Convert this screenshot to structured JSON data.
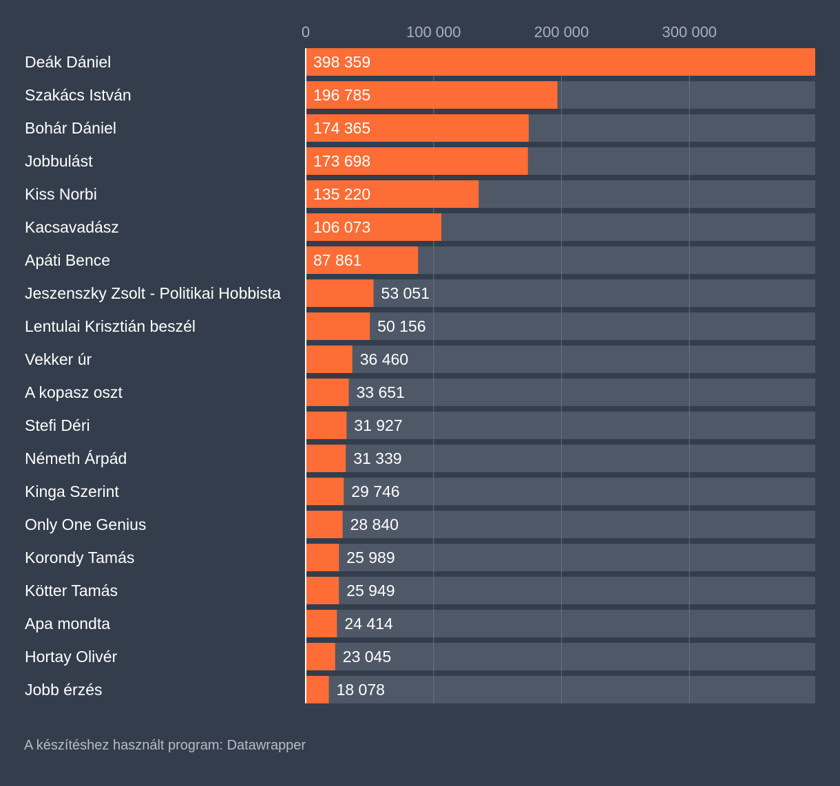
{
  "chart_data": {
    "type": "bar",
    "orientation": "horizontal",
    "categories": [
      "Deák Dániel",
      "Szakács István",
      "Bohár Dániel",
      "Jobbulást",
      "Kiss Norbi",
      "Kacsavadász",
      "Apáti Bence",
      "Jeszenszky Zsolt - Politikai Hobbista",
      "Lentulai Krisztián beszél",
      "Vekker úr",
      "A kopasz oszt",
      "Stefi Déri",
      "Németh Árpád",
      "Kinga Szerint",
      "Only One Genius",
      "Korondy Tamás",
      "Kötter Tamás",
      "Apa mondta",
      "Hortay Olivér",
      "Jobb érzés"
    ],
    "values": [
      398359,
      196785,
      174365,
      173698,
      135220,
      106073,
      87861,
      53051,
      50156,
      36460,
      33651,
      31927,
      31339,
      29746,
      28840,
      25989,
      25949,
      24414,
      23045,
      18078
    ],
    "value_labels": [
      "398 359",
      "196 785",
      "174 365",
      "173 698",
      "135 220",
      "106 073",
      "87 861",
      "53 051",
      "50 156",
      "36 460",
      "33 651",
      "31 927",
      "31 339",
      "29 746",
      "28 840",
      "25 989",
      "25 949",
      "24 414",
      "23 045",
      "18 078"
    ],
    "ticks": [
      0,
      100000,
      200000,
      300000
    ],
    "tick_labels": [
      "0",
      "100 000",
      "200 000",
      "300 000"
    ],
    "xlim": [
      0,
      398359
    ],
    "grid": true,
    "title": "",
    "xlabel": "",
    "ylabel": ""
  },
  "colors": {
    "background": "#333d4c",
    "bar": "#ff6d36",
    "track": "#4f5867",
    "grid": "#69717f",
    "axis": "#ffffff"
  },
  "footer": {
    "text": "A készítéshez használt program: Datawrapper"
  }
}
